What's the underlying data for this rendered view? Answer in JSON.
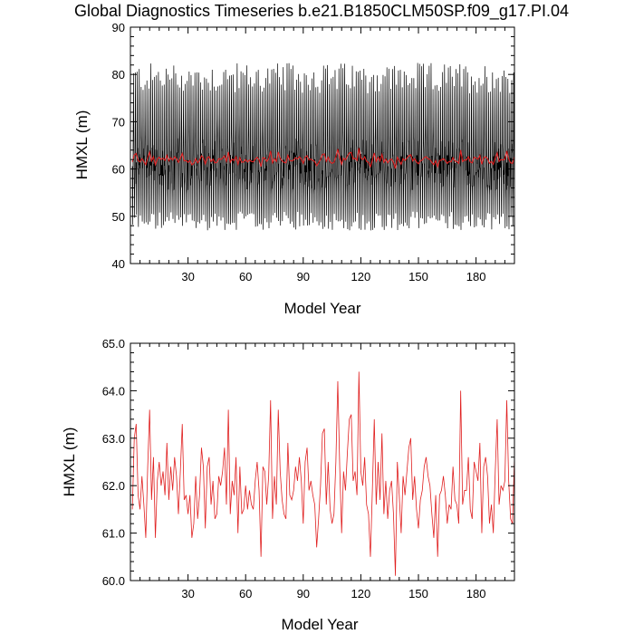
{
  "title": "Global Diagnostics Timeseries b.e21.B1850CLM50SP.f09_g17.PI.04",
  "colors": {
    "annual": "#e02020",
    "monthly": "#000000",
    "axis": "#000000"
  },
  "chart_data": [
    {
      "type": "line",
      "xlabel": "Model Year",
      "ylabel": "HMXL (m)",
      "xlim": [
        0,
        200
      ],
      "ylim": [
        40,
        90
      ],
      "xticks": [
        30,
        60,
        90,
        120,
        150,
        180
      ],
      "yticks": [
        40,
        50,
        60,
        70,
        80,
        90
      ],
      "grid": false,
      "series": [
        {
          "color": "#000000",
          "kind": "monthly",
          "annual_max_range": [
            76,
            82.5
          ],
          "annual_min_range": [
            47,
            51
          ],
          "mean": 59.5
        },
        {
          "color": "#e02020",
          "kind": "annual_mean",
          "ref": "annual_mean_values"
        }
      ]
    },
    {
      "type": "line",
      "xlabel": "Model Year",
      "ylabel": "HMXL (m)",
      "xlim": [
        0,
        200
      ],
      "ylim": [
        60,
        65
      ],
      "xticks": [
        30,
        60,
        90,
        120,
        150,
        180
      ],
      "yticks": [
        "60.0",
        "61.0",
        "62.0",
        "63.0",
        "64.0",
        "65.0"
      ],
      "grid": false,
      "series": [
        {
          "color": "#e02020",
          "kind": "annual_mean",
          "ref": "annual_mean_values"
        }
      ]
    }
  ],
  "annual_mean_values": [
    61.5,
    63.0,
    63.3,
    61.8,
    61.5,
    62.2,
    61.6,
    60.9,
    62.4,
    63.6,
    61.7,
    62.6,
    60.9,
    62.1,
    62.5,
    62.0,
    62.3,
    61.8,
    62.9,
    61.7,
    62.4,
    61.9,
    62.6,
    62.2,
    61.4,
    62.3,
    63.3,
    61.7,
    61.8,
    61.4,
    61.8,
    60.9,
    61.2,
    62.2,
    61.3,
    61.8,
    62.8,
    62.4,
    61.1,
    62.4,
    62.6,
    61.6,
    62.1,
    61.3,
    61.4,
    62.2,
    62.0,
    62.3,
    62.8,
    61.6,
    63.6,
    61.4,
    62.1,
    61.8,
    62.6,
    61.0,
    62.4,
    61.4,
    61.5,
    62.0,
    61.5,
    61.9,
    61.6,
    61.5,
    62.1,
    62.5,
    61.9,
    60.5,
    62.4,
    62.3,
    61.6,
    62.2,
    63.8,
    61.3,
    62.2,
    61.6,
    63.6,
    62.3,
    61.7,
    61.4,
    61.3,
    62.9,
    61.8,
    61.7,
    61.9,
    62.4,
    62.1,
    62.6,
    62.1,
    61.2,
    62.5,
    62.8,
    61.9,
    62.1,
    61.8,
    61.6,
    60.7,
    61.3,
    62.0,
    63.1,
    63.2,
    61.6,
    62.5,
    61.5,
    61.2,
    61.4,
    62.5,
    64.2,
    62.4,
    61.0,
    62.3,
    61.9,
    62.7,
    63.4,
    63.5,
    62.1,
    62.3,
    61.8,
    64.4,
    62.3,
    62.0,
    62.6,
    61.6,
    61.4,
    60.5,
    61.9,
    63.4,
    61.6,
    62.5,
    61.7,
    63.1,
    61.4,
    62.1,
    61.3,
    61.9,
    62.1,
    61.4,
    60.1,
    62.5,
    61.8,
    61.0,
    62.2,
    61.8,
    62.3,
    62.8,
    63.0,
    61.7,
    62.2,
    61.5,
    61.1,
    61.7,
    61.9,
    62.4,
    62.6,
    62.2,
    62.0,
    61.4,
    60.9,
    61.8,
    60.5,
    61.8,
    61.9,
    62.2,
    61.8,
    61.2,
    61.6,
    61.5,
    62.4,
    61.7,
    61.6,
    61.2,
    64.0,
    61.6,
    61.9,
    61.9,
    62.6,
    61.5,
    61.3,
    62.5,
    62.3,
    62.1,
    62.9,
    61.0,
    62.4,
    62.6,
    62.2,
    61.2,
    61.6,
    61.0,
    62.3,
    63.4,
    61.6,
    62.0,
    61.9,
    62.1,
    63.8,
    62.1,
    61.3,
    61.2,
    62.6,
    61.8,
    62.3,
    60.0,
    62.1,
    61.6
  ]
}
